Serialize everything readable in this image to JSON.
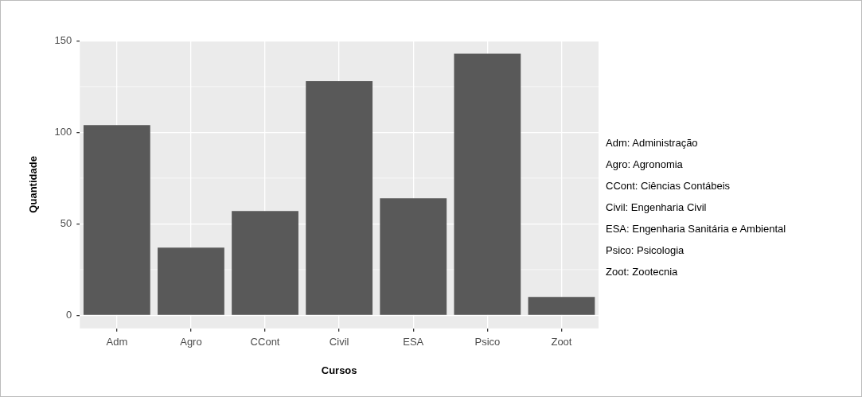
{
  "chart_data": {
    "type": "bar",
    "xlabel": "Cursos",
    "ylabel": "Quantidade",
    "categories": [
      "Adm",
      "Agro",
      "CCont",
      "Civil",
      "ESA",
      "Psico",
      "Zoot"
    ],
    "values": [
      104,
      37,
      57,
      128,
      64,
      143,
      10
    ],
    "color": "#595959",
    "ylim": [
      -7.15,
      150.15
    ],
    "yticks": [
      0,
      50,
      100,
      150
    ],
    "grid": true,
    "legend": false,
    "annotations": [
      "Adm: Administração",
      "Agro: Agronomia",
      "CCont: Ciências Contábeis",
      "Civil: Engenharia Civil",
      "ESA: Engenharia Sanitária e Ambiental",
      "Psico: Psicologia",
      "Zoot: Zootecnia"
    ]
  }
}
